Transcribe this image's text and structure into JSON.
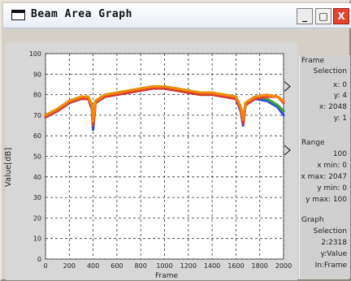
{
  "window": {
    "title": "Beam Area Graph",
    "buttons": {
      "minimize": "_",
      "maximize": "□",
      "close": "X"
    }
  },
  "chart_data": {
    "type": "line",
    "ylabel": "Value[dB]",
    "xlabel": "Frame",
    "xlim": [
      0,
      2000
    ],
    "ylim": [
      0,
      100
    ],
    "x_ticks": [
      "0",
      "200",
      "400",
      "600",
      "800",
      "1000",
      "1200",
      "1400",
      "1600",
      "1800",
      "2000"
    ],
    "y_ticks": [
      "100",
      "90",
      "80",
      "70",
      "60",
      "50",
      "40",
      "30",
      "20",
      "10",
      "0"
    ],
    "series": [
      {
        "color": "#1f3ddf",
        "values": [
          [
            0,
            69
          ],
          [
            100,
            72
          ],
          [
            200,
            76
          ],
          [
            300,
            78
          ],
          [
            360,
            78
          ],
          [
            390,
            73
          ],
          [
            400,
            63
          ],
          [
            420,
            76
          ],
          [
            500,
            79
          ],
          [
            600,
            80
          ],
          [
            700,
            81
          ],
          [
            800,
            82
          ],
          [
            900,
            83
          ],
          [
            1000,
            83
          ],
          [
            1100,
            82
          ],
          [
            1200,
            81
          ],
          [
            1300,
            80
          ],
          [
            1400,
            80
          ],
          [
            1500,
            79
          ],
          [
            1600,
            78
          ],
          [
            1640,
            72
          ],
          [
            1660,
            65
          ],
          [
            1680,
            75
          ],
          [
            1760,
            78
          ],
          [
            1860,
            77
          ],
          [
            1950,
            74
          ],
          [
            2000,
            70
          ]
        ]
      },
      {
        "color": "#2aa32a",
        "values": [
          [
            0,
            70
          ],
          [
            100,
            73
          ],
          [
            200,
            77
          ],
          [
            300,
            79
          ],
          [
            360,
            79
          ],
          [
            390,
            75
          ],
          [
            400,
            66
          ],
          [
            420,
            77
          ],
          [
            500,
            80
          ],
          [
            600,
            81
          ],
          [
            700,
            82
          ],
          [
            800,
            83
          ],
          [
            900,
            84
          ],
          [
            1000,
            84
          ],
          [
            1100,
            83
          ],
          [
            1200,
            82
          ],
          [
            1300,
            81
          ],
          [
            1400,
            81
          ],
          [
            1500,
            80
          ],
          [
            1600,
            79
          ],
          [
            1640,
            74
          ],
          [
            1660,
            67
          ],
          [
            1680,
            76
          ],
          [
            1760,
            79
          ],
          [
            1860,
            78
          ],
          [
            1950,
            75
          ],
          [
            2000,
            72
          ]
        ]
      },
      {
        "color": "#e33d1f",
        "values": [
          [
            0,
            69
          ],
          [
            100,
            72
          ],
          [
            200,
            76
          ],
          [
            300,
            78
          ],
          [
            360,
            78
          ],
          [
            390,
            74
          ],
          [
            400,
            65
          ],
          [
            420,
            76
          ],
          [
            500,
            79
          ],
          [
            600,
            80
          ],
          [
            700,
            81
          ],
          [
            800,
            82
          ],
          [
            900,
            83
          ],
          [
            1000,
            83
          ],
          [
            1100,
            82
          ],
          [
            1200,
            81
          ],
          [
            1300,
            80
          ],
          [
            1400,
            80
          ],
          [
            1500,
            79
          ],
          [
            1600,
            78
          ],
          [
            1640,
            73
          ],
          [
            1660,
            66
          ],
          [
            1680,
            75
          ],
          [
            1760,
            78
          ],
          [
            1860,
            79
          ],
          [
            1950,
            79
          ],
          [
            2000,
            76
          ]
        ]
      },
      {
        "color": "#ff8a00",
        "values": [
          [
            0,
            70
          ],
          [
            100,
            73
          ],
          [
            200,
            77
          ],
          [
            300,
            79
          ],
          [
            360,
            79
          ],
          [
            390,
            75
          ],
          [
            400,
            67
          ],
          [
            420,
            77
          ],
          [
            500,
            80
          ],
          [
            600,
            81
          ],
          [
            700,
            82
          ],
          [
            800,
            83
          ],
          [
            900,
            84
          ],
          [
            1000,
            84
          ],
          [
            1100,
            83
          ],
          [
            1200,
            82
          ],
          [
            1300,
            81
          ],
          [
            1400,
            81
          ],
          [
            1500,
            80
          ],
          [
            1600,
            79
          ],
          [
            1640,
            74
          ],
          [
            1660,
            68
          ],
          [
            1680,
            76
          ],
          [
            1760,
            79
          ],
          [
            1860,
            80
          ],
          [
            1950,
            79
          ],
          [
            2000,
            77
          ]
        ]
      }
    ]
  },
  "side_panel": {
    "items": [
      "Frame",
      "Selection",
      "x: 0",
      "y: 4",
      "x: 2048",
      "y: 1",
      "Range",
      "100",
      "x min: 0",
      "x max: 2047",
      "y min: 0",
      "y max: 100",
      "Graph",
      "Selection",
      "2:2318",
      "y:Value",
      "In:Frame"
    ]
  }
}
